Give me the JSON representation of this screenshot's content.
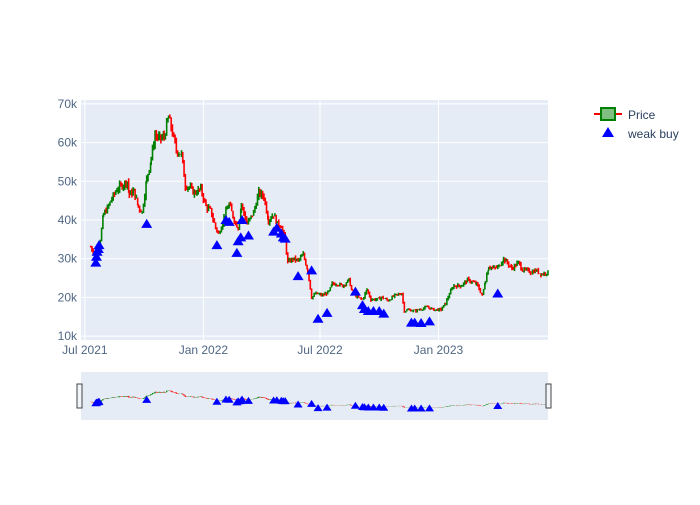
{
  "chart_data": {
    "type": "candlestick",
    "title": "",
    "xlabel": "",
    "ylabel": "",
    "x_ticks": [
      "Jul 2021",
      "Jan 2022",
      "Jul 2022",
      "Jan 2023"
    ],
    "y_ticks": [
      "10k",
      "20k",
      "30k",
      "40k",
      "50k",
      "60k",
      "70k"
    ],
    "y_tick_values": [
      10000,
      20000,
      30000,
      40000,
      50000,
      60000,
      70000
    ],
    "ylim": [
      9000,
      71000
    ],
    "xlim": [
      "2021-06-25",
      "2023-06-20"
    ],
    "grid": true,
    "legend_position": "top-right",
    "range_slider": true,
    "colors": {
      "increasing": "#008000",
      "decreasing": "#ff0000",
      "marker": "#0000ff",
      "plot_background": "#e5ecf6",
      "grid": "#ffffff",
      "tick_text": "#506784"
    },
    "series": [
      {
        "name": "Price",
        "kind": "candlestick",
        "close_path": [
          [
            "2021-07-10",
            33000
          ],
          [
            "2021-07-15",
            31500
          ],
          [
            "2021-07-20",
            30500
          ],
          [
            "2021-07-25",
            35000
          ],
          [
            "2021-07-30",
            41500
          ],
          [
            "2021-08-05",
            43000
          ],
          [
            "2021-08-12",
            45500
          ],
          [
            "2021-08-20",
            48000
          ],
          [
            "2021-08-28",
            49000
          ],
          [
            "2021-09-05",
            50000
          ],
          [
            "2021-09-08",
            46500
          ],
          [
            "2021-09-15",
            47500
          ],
          [
            "2021-09-22",
            43500
          ],
          [
            "2021-09-28",
            42000
          ],
          [
            "2021-10-05",
            50500
          ],
          [
            "2021-10-12",
            56000
          ],
          [
            "2021-10-18",
            62000
          ],
          [
            "2021-10-25",
            61000
          ],
          [
            "2021-11-01",
            61500
          ],
          [
            "2021-11-08",
            66500
          ],
          [
            "2021-11-12",
            64000
          ],
          [
            "2021-11-20",
            58000
          ],
          [
            "2021-11-28",
            57000
          ],
          [
            "2021-12-04",
            49000
          ],
          [
            "2021-12-10",
            48500
          ],
          [
            "2021-12-18",
            47000
          ],
          [
            "2021-12-28",
            48000
          ],
          [
            "2022-01-05",
            43500
          ],
          [
            "2022-01-12",
            42500
          ],
          [
            "2022-01-20",
            38000
          ],
          [
            "2022-01-25",
            36500
          ],
          [
            "2022-02-05",
            42000
          ],
          [
            "2022-02-10",
            44000
          ],
          [
            "2022-02-18",
            40000
          ],
          [
            "2022-02-24",
            38000
          ],
          [
            "2022-03-01",
            44000
          ],
          [
            "2022-03-10",
            39000
          ],
          [
            "2022-03-20",
            42000
          ],
          [
            "2022-03-28",
            47000
          ],
          [
            "2022-04-05",
            46000
          ],
          [
            "2022-04-12",
            40000
          ],
          [
            "2022-04-20",
            41500
          ],
          [
            "2022-04-26",
            39000
          ],
          [
            "2022-05-02",
            38500
          ],
          [
            "2022-05-08",
            34500
          ],
          [
            "2022-05-12",
            29000
          ],
          [
            "2022-05-20",
            30000
          ],
          [
            "2022-05-28",
            29500
          ],
          [
            "2022-06-05",
            31000
          ],
          [
            "2022-06-12",
            27000
          ],
          [
            "2022-06-18",
            20000
          ],
          [
            "2022-06-25",
            21000
          ],
          [
            "2022-07-05",
            20500
          ],
          [
            "2022-07-15",
            21500
          ],
          [
            "2022-07-20",
            23500
          ],
          [
            "2022-07-28",
            23500
          ],
          [
            "2022-08-05",
            23000
          ],
          [
            "2022-08-15",
            24500
          ],
          [
            "2022-08-20",
            21500
          ],
          [
            "2022-08-28",
            20000
          ],
          [
            "2022-09-05",
            19500
          ],
          [
            "2022-09-12",
            22000
          ],
          [
            "2022-09-18",
            19500
          ],
          [
            "2022-09-28",
            19500
          ],
          [
            "2022-10-05",
            20000
          ],
          [
            "2022-10-15",
            19200
          ],
          [
            "2022-10-25",
            20500
          ],
          [
            "2022-11-05",
            21000
          ],
          [
            "2022-11-09",
            16500
          ],
          [
            "2022-11-15",
            16800
          ],
          [
            "2022-11-25",
            16500
          ],
          [
            "2022-12-05",
            17000
          ],
          [
            "2022-12-15",
            17500
          ],
          [
            "2022-12-25",
            16800
          ],
          [
            "2023-01-05",
            16900
          ],
          [
            "2023-01-12",
            18500
          ],
          [
            "2023-01-18",
            21000
          ],
          [
            "2023-01-25",
            23000
          ],
          [
            "2023-02-05",
            23000
          ],
          [
            "2023-02-15",
            24500
          ],
          [
            "2023-02-22",
            24000
          ],
          [
            "2023-03-01",
            23500
          ],
          [
            "2023-03-10",
            20500
          ],
          [
            "2023-03-15",
            24500
          ],
          [
            "2023-03-20",
            28000
          ],
          [
            "2023-03-28",
            27500
          ],
          [
            "2023-04-05",
            28000
          ],
          [
            "2023-04-12",
            30000
          ],
          [
            "2023-04-20",
            28500
          ],
          [
            "2023-04-25",
            27500
          ],
          [
            "2023-05-05",
            29000
          ],
          [
            "2023-05-12",
            27000
          ],
          [
            "2023-05-18",
            27000
          ],
          [
            "2023-05-25",
            26500
          ],
          [
            "2023-06-01",
            27000
          ],
          [
            "2023-06-10",
            26000
          ],
          [
            "2023-06-20",
            26500
          ]
        ]
      },
      {
        "name": "weak buy",
        "kind": "markers",
        "symbol": "triangle-up",
        "points": [
          [
            "2021-07-18",
            29000
          ],
          [
            "2021-07-19",
            30500
          ],
          [
            "2021-07-20",
            31800
          ],
          [
            "2021-07-22",
            32500
          ],
          [
            "2021-07-23",
            33500
          ],
          [
            "2021-10-05",
            39000
          ],
          [
            "2022-01-22",
            33500
          ],
          [
            "2022-02-05",
            40000
          ],
          [
            "2022-02-10",
            39500
          ],
          [
            "2022-02-22",
            31500
          ],
          [
            "2022-02-24",
            34500
          ],
          [
            "2022-02-28",
            35500
          ],
          [
            "2022-03-02",
            40000
          ],
          [
            "2022-03-12",
            36000
          ],
          [
            "2022-04-20",
            37000
          ],
          [
            "2022-04-25",
            38000
          ],
          [
            "2022-05-02",
            36500
          ],
          [
            "2022-05-05",
            35500
          ],
          [
            "2022-05-08",
            35200
          ],
          [
            "2022-05-28",
            25500
          ],
          [
            "2022-06-18",
            27000
          ],
          [
            "2022-06-28",
            14500
          ],
          [
            "2022-07-12",
            16000
          ],
          [
            "2022-08-25",
            21500
          ],
          [
            "2022-09-05",
            18000
          ],
          [
            "2022-09-08",
            17000
          ],
          [
            "2022-09-14",
            16500
          ],
          [
            "2022-09-22",
            16500
          ],
          [
            "2022-10-01",
            16500
          ],
          [
            "2022-10-08",
            15800
          ],
          [
            "2022-11-20",
            13500
          ],
          [
            "2022-11-25",
            13500
          ],
          [
            "2022-12-05",
            13400
          ],
          [
            "2022-12-18",
            13800
          ],
          [
            "2023-04-03",
            21000
          ]
        ]
      }
    ]
  }
}
